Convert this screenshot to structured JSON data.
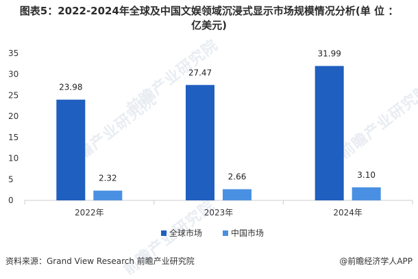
{
  "title_line1": "图表5：2022-2024年全球及中国文娱领域沉浸式显示市场规模情况分析(单 位 ：",
  "title_line2": "亿美元)",
  "source": "资料来源：Grand View Research 前瞻产业研究院",
  "brand": "@前瞻经济学人APP",
  "watermark": "前瞻产业研究院",
  "colors": {
    "global": "#1f5fbf",
    "china": "#4a90e2",
    "axis": "#cccccc"
  },
  "chart_data": {
    "type": "bar",
    "categories": [
      "2022年",
      "2023年",
      "2024年"
    ],
    "series": [
      {
        "name": "全球市场",
        "values": [
          23.98,
          27.47,
          31.99
        ],
        "labels": [
          "23.98",
          "27.47",
          "31.99"
        ]
      },
      {
        "name": "中国市场",
        "values": [
          2.32,
          2.66,
          3.1
        ],
        "labels": [
          "2.32",
          "2.66",
          "3.10"
        ]
      }
    ],
    "yticks": [
      "0",
      "5",
      "10",
      "15",
      "20",
      "25",
      "30",
      "35"
    ],
    "ylim": [
      0,
      35
    ],
    "legend_position": "bottom",
    "grid": false
  }
}
